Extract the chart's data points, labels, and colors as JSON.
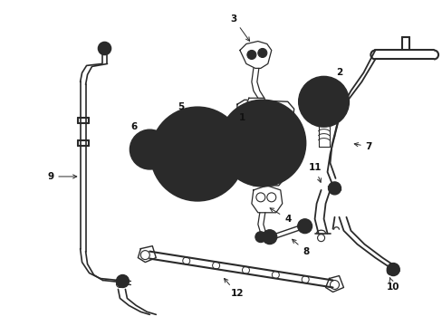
{
  "background_color": "#ffffff",
  "line_color": "#2a2a2a",
  "label_color": "#111111",
  "fig_width": 4.89,
  "fig_height": 3.6,
  "dpi": 100
}
